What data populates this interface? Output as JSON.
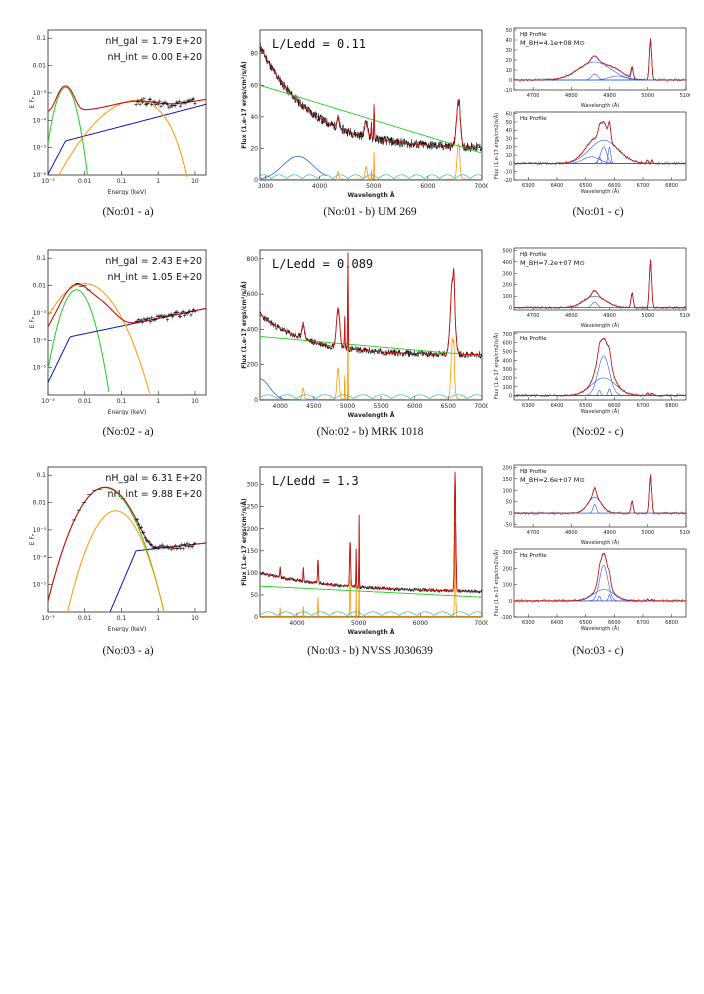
{
  "rows": [
    {
      "a": {
        "caption": "(No:01 - a)",
        "annotations": [
          "nH_gal = 1.79 E+20",
          "nH_int = 0.00 E+20"
        ],
        "ylabel": "E Fₑ",
        "xlabel": "Energy (keV)",
        "x_ticks": [
          "10⁻³",
          "0.01",
          "0.1",
          "1",
          "10"
        ],
        "y_ticks": [
          "0.1",
          "0.01",
          "10⁻³",
          "10⁻⁴",
          "10⁻⁵",
          "10⁻⁶"
        ]
      },
      "b": {
        "caption": "(No:01 - b) UM 269",
        "annotation": "L/Ledd = 0.11",
        "ylabel": "Flux (1.e-17 ergs/cm²/s/Å)",
        "xlabel": "Wavelength Å",
        "x_ticks": [
          "3000",
          "4000",
          "5000",
          "6000",
          "7000"
        ],
        "y_ticks": [
          "0",
          "20",
          "40",
          "60",
          "80"
        ]
      },
      "c": {
        "caption": "(No:01 - c)",
        "top_label": "Hβ Profile",
        "mass_label": "M_BH=4.1e+08 M⊙",
        "bottom_label": "Hα Profile",
        "top_xticks": [
          "4700",
          "4800",
          "4900",
          "5000",
          "5100"
        ],
        "bottom_xticks": [
          "6300",
          "6400",
          "6500",
          "6600",
          "6700",
          "6800"
        ],
        "top_yticks": [
          "-10",
          "0",
          "10",
          "20",
          "30",
          "40",
          "50"
        ],
        "bottom_yticks": [
          "-20",
          "-10",
          "0",
          "10",
          "20",
          "30",
          "40",
          "50",
          "60"
        ],
        "ylabel": "Flux (1.e-17 ergs/cm2/s/Å)",
        "xlabel": "Wavelength (Å)"
      }
    },
    {
      "a": {
        "caption": "(No:02 - a)",
        "annotations": [
          "nH_gal = 2.43 E+20",
          "nH_int = 1.05 E+20"
        ],
        "ylabel": "E Fₑ",
        "xlabel": "Energy (keV)",
        "x_ticks": [
          "10⁻³",
          "0.01",
          "0.1",
          "1",
          "10"
        ],
        "y_ticks": [
          "0.1",
          "0.01",
          "10⁻³",
          "10⁻⁴",
          "10⁻⁵"
        ]
      },
      "b": {
        "caption": "(No:02 - b) MRK 1018",
        "annotation": "L/Ledd = 0.089",
        "ylabel": "Flux (1.e-17 ergs/cm²/s/Å)",
        "xlabel": "Wavelength Å",
        "x_ticks": [
          "4000",
          "4500",
          "5000",
          "5500",
          "6000",
          "6500",
          "7000"
        ],
        "y_ticks": [
          "0",
          "200",
          "400",
          "600",
          "800"
        ]
      },
      "c": {
        "caption": "(No:02 - c)",
        "top_label": "Hβ Profile",
        "mass_label": "M_BH=7.2e+07 M⊙",
        "bottom_label": "Hα Profile",
        "top_xticks": [
          "4700",
          "4800",
          "4900",
          "5000",
          "5100"
        ],
        "bottom_xticks": [
          "6300",
          "6400",
          "6500",
          "6600",
          "6700",
          "6800"
        ],
        "top_yticks": [
          "0",
          "100",
          "200",
          "300",
          "400",
          "500"
        ],
        "bottom_yticks": [
          "0",
          "100",
          "200",
          "300",
          "400",
          "500",
          "600",
          "700"
        ],
        "ylabel": "Flux (1.e-17 ergs/cm2/s/Å)",
        "xlabel": "Wavelength (Å)"
      }
    },
    {
      "a": {
        "caption": "(No:03 - a)",
        "annotations": [
          "nH_gal = 6.31 E+20",
          "nH_int = 9.88 E+20"
        ],
        "ylabel": "E Fₑ",
        "xlabel": "Energy (keV)",
        "x_ticks": [
          "10⁻³",
          "0.01",
          "0.1",
          "1",
          "10"
        ],
        "y_ticks": [
          "0.1",
          "0.01",
          "10⁻³",
          "10⁻⁴",
          "10⁻⁵"
        ]
      },
      "b": {
        "caption": "(No:03 - b) NVSS J030639",
        "annotation": "L/Ledd = 1.3",
        "ylabel": "Flux (1.e-17 ergs/cm²/s/Å)",
        "xlabel": "Wavelength Å",
        "x_ticks": [
          "4000",
          "5000",
          "6000",
          "7000"
        ],
        "y_ticks": [
          "0",
          "50",
          "100",
          "150",
          "200",
          "250",
          "300"
        ]
      },
      "c": {
        "caption": "(No:03 - c)",
        "top_label": "Hβ Profile",
        "mass_label": "M_BH=2.6e+07 M⊙",
        "bottom_label": "Hα Profile",
        "top_xticks": [
          "4700",
          "4800",
          "4900",
          "5000",
          "5100"
        ],
        "bottom_xticks": [
          "6300",
          "6400",
          "6500",
          "6600",
          "6700",
          "6800"
        ],
        "top_yticks": [
          "-50",
          "0",
          "50",
          "100",
          "150",
          "200"
        ],
        "bottom_yticks": [
          "-100",
          "0",
          "100",
          "200",
          "300"
        ],
        "ylabel": "Flux (1.e-17 ergs/cm2/s/Å)",
        "xlabel": "Wavelength (Å)"
      }
    }
  ],
  "colors": {
    "model": "#cc1111",
    "data": "#111111",
    "powerlaw": "#1111bb",
    "bb": "#22cc22",
    "comp": "#ff9900",
    "cyan": "#22bbdd",
    "green": "#22cc22",
    "gauss": "#3355ee"
  },
  "chart_data": [
    {
      "type": "line",
      "panel": "No:01 - a",
      "xlabel": "Energy (keV)",
      "ylabel": "E F_E",
      "log_x": true,
      "log_y": true,
      "xlim": [
        0.001,
        20
      ],
      "ylim": [
        1e-06,
        0.2
      ],
      "series": [
        {
          "color": "green",
          "x": [
            0.001,
            0.002,
            0.004,
            0.007,
            0.01
          ],
          "y": [
            1e-05,
            0.0015,
            0.0014,
            0.0001,
            1e-06
          ]
        },
        {
          "color": "blue",
          "x": [
            0.001,
            0.003,
            0.01,
            0.1,
            1,
            10,
            20
          ],
          "y": [
            1e-06,
            1e-05,
            3e-05,
            6e-05,
            0.00012,
            0.00025,
            0.0003
          ]
        },
        {
          "color": "orange",
          "x": [
            0.001,
            0.01,
            0.1,
            0.5,
            1,
            2.5
          ],
          "y": [
            0.0001,
            0.0003,
            0.0006,
            0.0007,
            0.0002,
            1e-06
          ]
        },
        {
          "color": "red",
          "x": [
            0.001,
            0.003,
            0.01,
            0.1,
            1,
            10,
            20
          ],
          "y": [
            0.0009,
            0.0016,
            0.0006,
            0.0005,
            0.0004,
            0.00025,
            0.0003
          ]
        }
      ]
    },
    {
      "type": "line",
      "panel": "No:01 - b",
      "xlabel": "Wavelength Å",
      "ylabel": "Flux",
      "xlim": [
        2900,
        7000
      ],
      "ylim": [
        0,
        95
      ],
      "series": [
        {
          "color": "red",
          "x": [
            2900,
            3500,
            4000,
            4500,
            5000,
            5500,
            6000,
            6500,
            6560,
            6600,
            7000
          ],
          "y": [
            85,
            62,
            45,
            37,
            30,
            27,
            24,
            30,
            42,
            26,
            20
          ]
        },
        {
          "color": "green",
          "x": [
            2900,
            4000,
            5000,
            6000,
            7000
          ],
          "y": [
            60,
            42,
            30,
            23,
            17
          ]
        }
      ]
    },
    {
      "type": "line",
      "panel": "No:02 - b",
      "xlabel": "Wavelength Å",
      "ylabel": "Flux",
      "xlim": [
        3700,
        7000
      ],
      "ylim": [
        0,
        850
      ],
      "series": [
        {
          "color": "red",
          "x": [
            3700,
            4000,
            4500,
            4860,
            5007,
            5500,
            6000,
            6563,
            7000
          ],
          "y": [
            480,
            420,
            360,
            470,
            800,
            300,
            290,
            690,
            260
          ]
        },
        {
          "color": "green",
          "x": [
            3700,
            5000,
            6000,
            7000
          ],
          "y": [
            360,
            310,
            280,
            250
          ]
        }
      ]
    },
    {
      "type": "line",
      "panel": "No:03 - b",
      "xlabel": "Wavelength Å",
      "ylabel": "Flux",
      "xlim": [
        3400,
        7000
      ],
      "ylim": [
        0,
        340
      ],
      "series": [
        {
          "color": "red",
          "x": [
            3400,
            4000,
            4340,
            4860,
            5007,
            5500,
            6000,
            6563,
            7000
          ],
          "y": [
            100,
            85,
            120,
            160,
            225,
            70,
            65,
            325,
            55
          ]
        },
        {
          "color": "green",
          "x": [
            3400,
            5000,
            6000,
            7000
          ],
          "y": [
            70,
            60,
            55,
            45
          ]
        }
      ]
    }
  ]
}
